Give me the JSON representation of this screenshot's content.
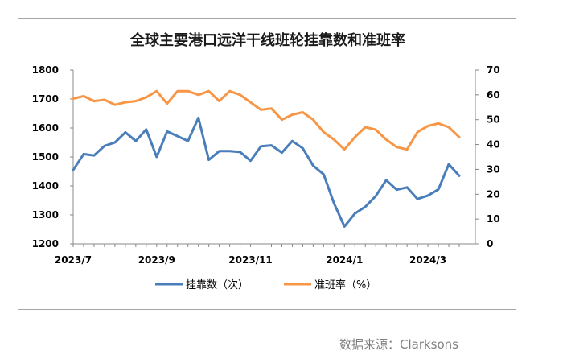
{
  "chart_data": {
    "type": "line",
    "title": "全球主要港口远洋干线班轮挂靠数和准班率",
    "x_tick_labels": [
      "2023/7",
      "2023/9",
      "2023/11",
      "2024/1",
      "2024/3"
    ],
    "left_axis": {
      "ylim": [
        1200,
        1800
      ],
      "ticks": [
        "1800",
        "1700",
        "1600",
        "1500",
        "1400",
        "1300",
        "1200"
      ]
    },
    "right_axis": {
      "ylim": [
        0,
        70
      ],
      "ticks": [
        "70",
        "60",
        "50",
        "40",
        "30",
        "20",
        "10",
        "0"
      ]
    },
    "grid": false,
    "legend_position": "bottom",
    "series": [
      {
        "name": "挂靠数（次）",
        "axis": "left",
        "color": "#4a7ebb",
        "values": [
          1455,
          1510,
          1505,
          1538,
          1550,
          1585,
          1555,
          1595,
          1500,
          1588,
          1572,
          1555,
          1635,
          1490,
          1520,
          1520,
          1517,
          1487,
          1537,
          1540,
          1515,
          1555,
          1530,
          1470,
          1440,
          1340,
          1260,
          1305,
          1328,
          1365,
          1420,
          1387,
          1395,
          1355,
          1367,
          1388,
          1475,
          1435
        ]
      },
      {
        "name": "准班率（%）",
        "axis": "right",
        "color": "#f79646",
        "values": [
          58.5,
          59.5,
          57.5,
          58,
          56,
          57,
          57.5,
          59,
          61.5,
          56.5,
          61.5,
          61.5,
          60,
          61.5,
          57.5,
          61.5,
          60,
          57,
          54,
          54.5,
          50,
          52,
          53,
          50,
          45,
          42,
          38,
          43,
          47,
          46,
          42,
          39,
          38,
          45,
          47.5,
          48.5,
          47,
          43
        ]
      }
    ]
  },
  "source": "数据来源：Clarksons"
}
